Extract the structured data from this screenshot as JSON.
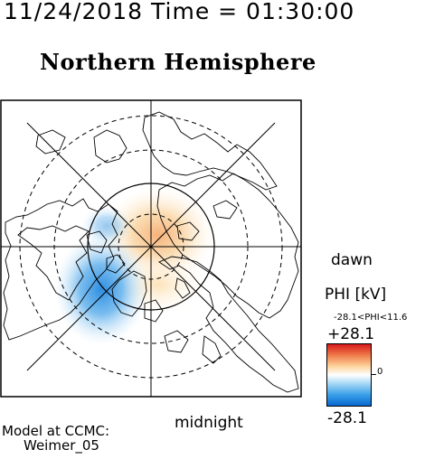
{
  "header": {
    "timestamp": "11/24/2018 Time = 01:30:00",
    "title": "Northern Hemisphere"
  },
  "map": {
    "projection": "polar",
    "hemisphere": "north",
    "grid": true,
    "coastlines": true
  },
  "orientation": {
    "dawn": "dawn",
    "midnight": "midnight"
  },
  "colorbar": {
    "title": "PHI [kV]",
    "range_text": "-28.1<PHI<11.6",
    "max_label": "+28.1",
    "min_label": "-28.1",
    "zero_label": "0",
    "colors": {
      "max": "#d7191c",
      "mid_pos": "#fdd49e",
      "zero": "#ffffff",
      "mid_neg": "#3aa0e8",
      "min": "#0868d0"
    }
  },
  "credit": {
    "line1": "Model at CCMC:",
    "line2": "Weimer_05"
  }
}
